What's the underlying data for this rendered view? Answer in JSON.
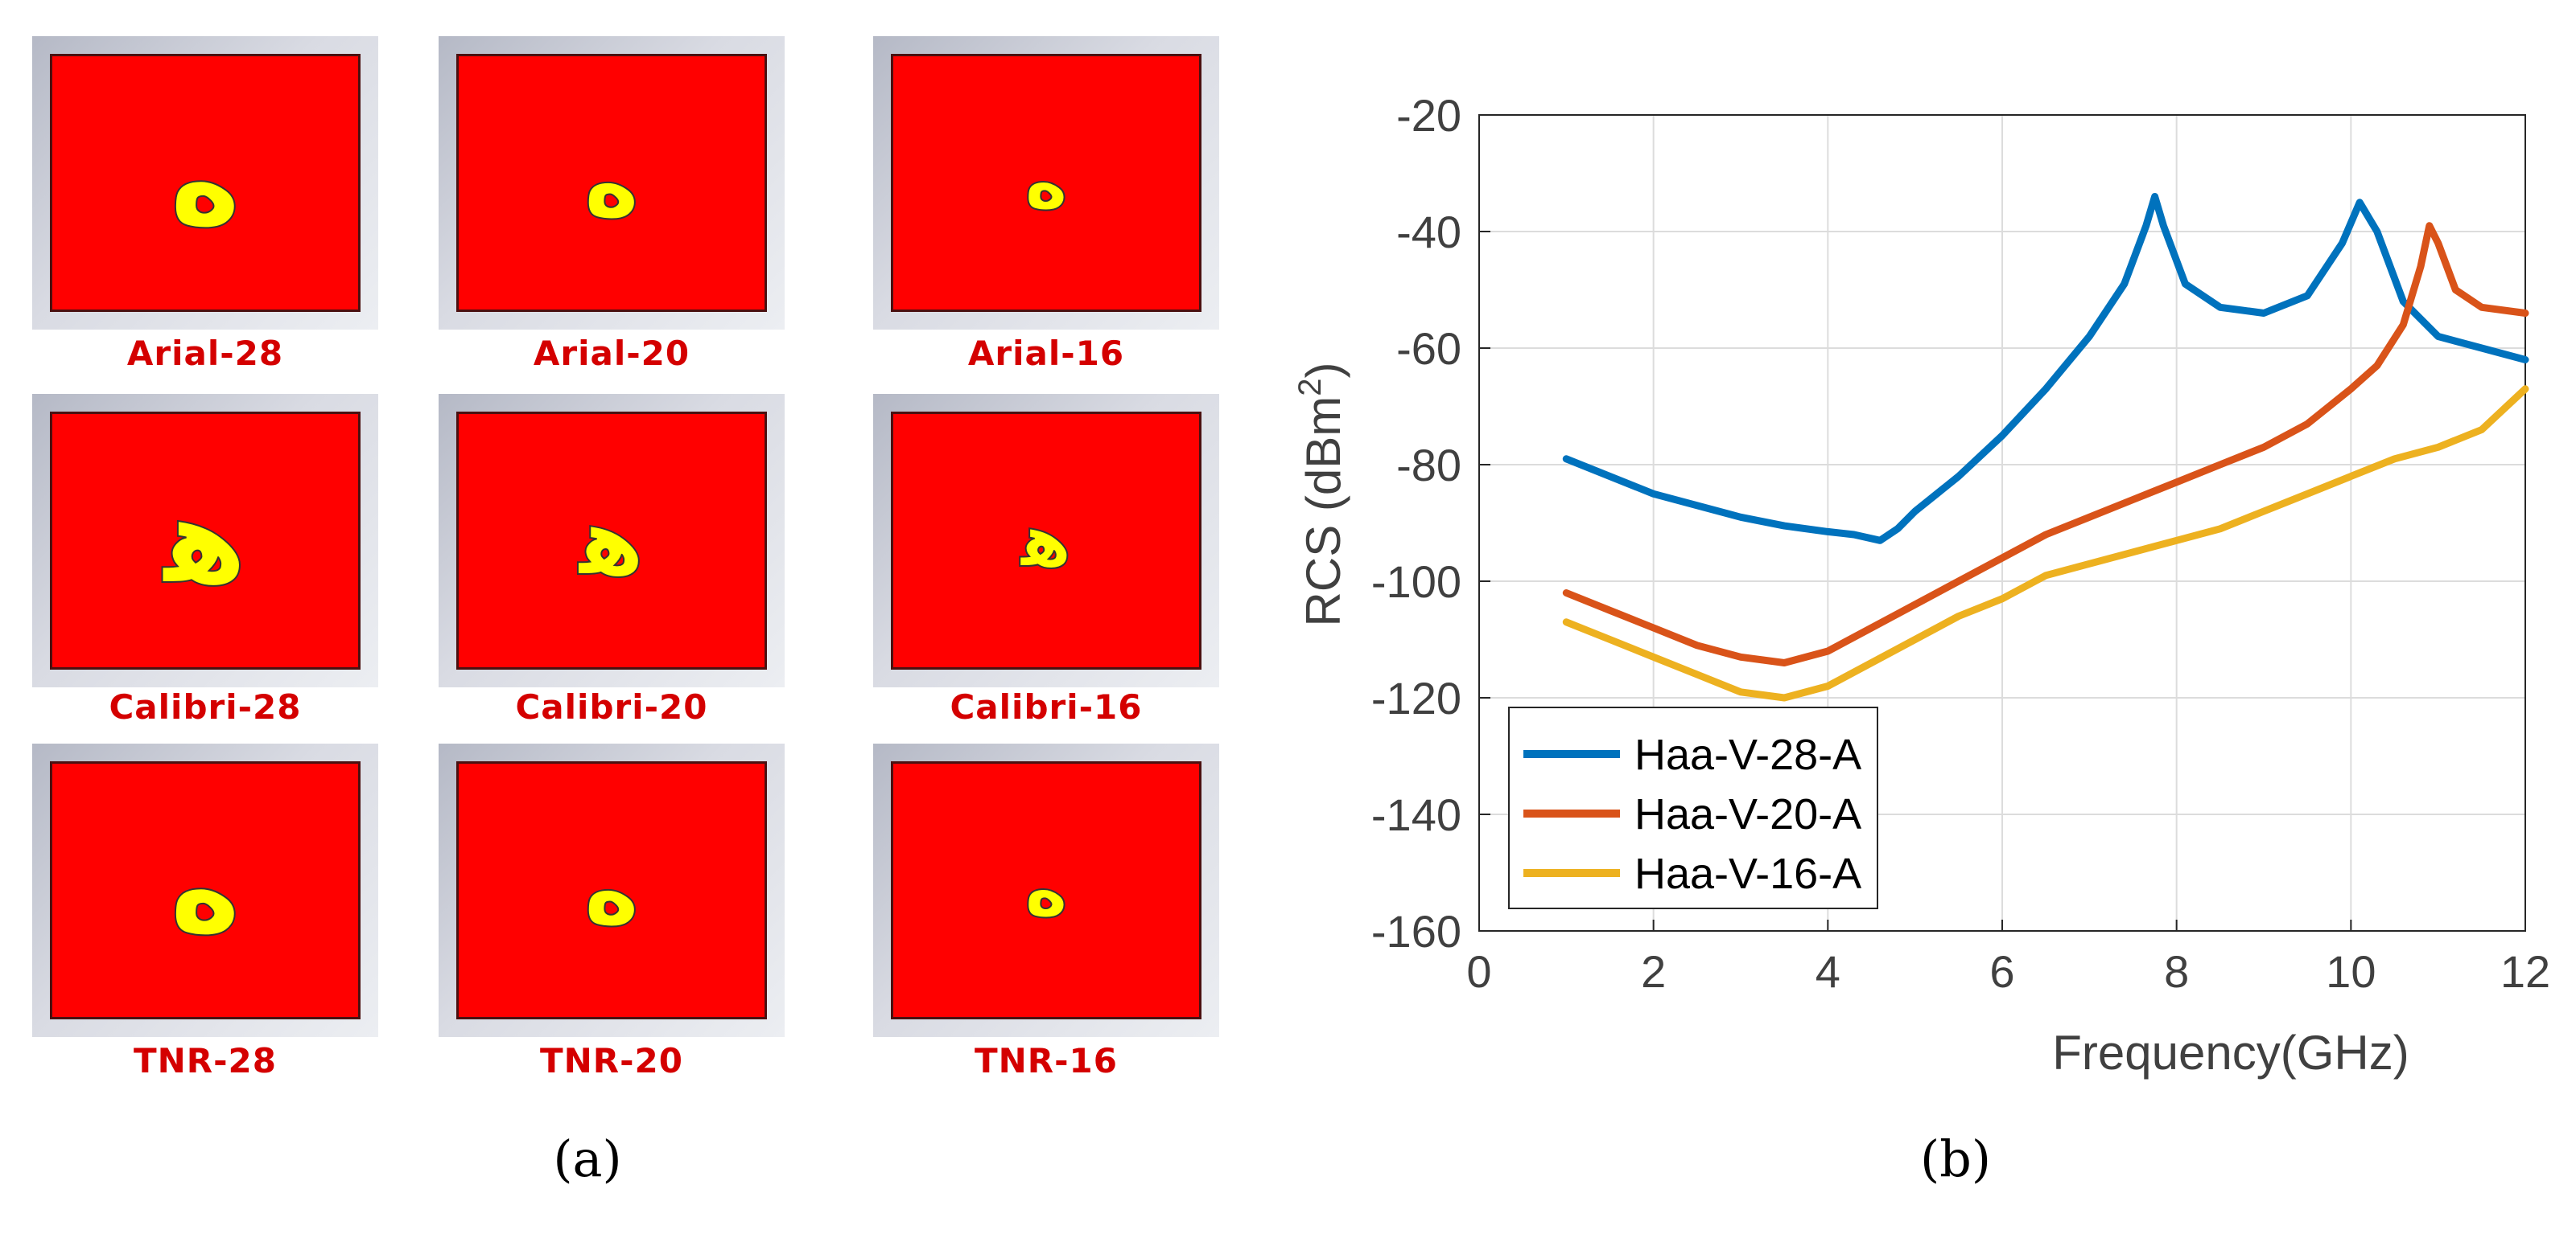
{
  "panel_a": {
    "tiles": [
      {
        "caption": "Arial-28",
        "glyph": "ه",
        "glyph_size": "large"
      },
      {
        "caption": "Arial-20",
        "glyph": "ه",
        "glyph_size": "medium"
      },
      {
        "caption": "Arial-16",
        "glyph": "ه",
        "glyph_size": "small"
      },
      {
        "caption": "Calibri-28",
        "glyph": "ﻫ",
        "glyph_size": "large"
      },
      {
        "caption": "Calibri-20",
        "glyph": "ﻫ",
        "glyph_size": "medium"
      },
      {
        "caption": "Calibri-16",
        "glyph": "ﻫ",
        "glyph_size": "small"
      },
      {
        "caption": "TNR-28",
        "glyph": "ه",
        "glyph_size": "large"
      },
      {
        "caption": "TNR-20",
        "glyph": "ه",
        "glyph_size": "medium"
      },
      {
        "caption": "TNR-16",
        "glyph": "ه",
        "glyph_size": "small"
      }
    ],
    "label": "(a)",
    "colors": {
      "patch": "#ff0000",
      "glyph": "#ffff00",
      "caption": "#d40000"
    }
  },
  "panel_b": {
    "label": "(b)"
  },
  "chart_data": {
    "type": "line",
    "title": "",
    "xlabel": "Frequency(GHz)",
    "ylabel": "RCS (dBm",
    "ylabel_sup": "2",
    "ylabel_close": ")",
    "xlim": [
      0,
      12
    ],
    "ylim": [
      -160,
      -20
    ],
    "xticks": [
      0,
      2,
      4,
      6,
      8,
      10,
      12
    ],
    "yticks": [
      -160,
      -140,
      -120,
      -100,
      -80,
      -60,
      -40,
      -20
    ],
    "grid": true,
    "legend_position": "bottom-left",
    "series": [
      {
        "name": "Haa-V-28-A",
        "color": "#0072bd",
        "x": [
          1,
          2,
          3,
          3.5,
          4,
          4.3,
          4.6,
          4.8,
          5,
          5.5,
          6,
          6.5,
          7,
          7.4,
          7.65,
          7.75,
          7.85,
          8.1,
          8.5,
          9,
          9.5,
          9.9,
          10.1,
          10.3,
          10.6,
          11,
          11.5,
          12
        ],
        "y": [
          -79,
          -85,
          -89,
          -90.5,
          -91.5,
          -92,
          -93,
          -91,
          -88,
          -82,
          -75,
          -67,
          -58,
          -49,
          -39,
          -34,
          -39,
          -49,
          -53,
          -54,
          -51,
          -42,
          -35,
          -40,
          -52,
          -58,
          -60,
          -62
        ]
      },
      {
        "name": "Haa-V-20-A",
        "color": "#d95319",
        "x": [
          1,
          1.5,
          2,
          2.5,
          3,
          3.5,
          4,
          4.5,
          5,
          5.5,
          6,
          6.5,
          7,
          7.5,
          8,
          8.5,
          9,
          9.5,
          10,
          10.3,
          10.6,
          10.8,
          10.9,
          11,
          11.2,
          11.5,
          12
        ],
        "y": [
          -102,
          -105,
          -108,
          -111,
          -113,
          -114,
          -112,
          -108,
          -104,
          -100,
          -96,
          -92,
          -89,
          -86,
          -83,
          -80,
          -77,
          -73,
          -67,
          -63,
          -56,
          -46,
          -39,
          -42,
          -50,
          -53,
          -54
        ]
      },
      {
        "name": "Haa-V-16-A",
        "color": "#edb120",
        "x": [
          1,
          1.5,
          2,
          2.5,
          3,
          3.5,
          4,
          4.5,
          5,
          5.5,
          6,
          6.5,
          7,
          7.5,
          8,
          8.5,
          9,
          9.5,
          10,
          10.5,
          11,
          11.5,
          12
        ],
        "y": [
          -107,
          -110,
          -113,
          -116,
          -119,
          -120,
          -118,
          -114,
          -110,
          -106,
          -103,
          -99,
          -97,
          -95,
          -93,
          -91,
          -88,
          -85,
          -82,
          -79,
          -77,
          -74,
          -67
        ]
      }
    ]
  }
}
